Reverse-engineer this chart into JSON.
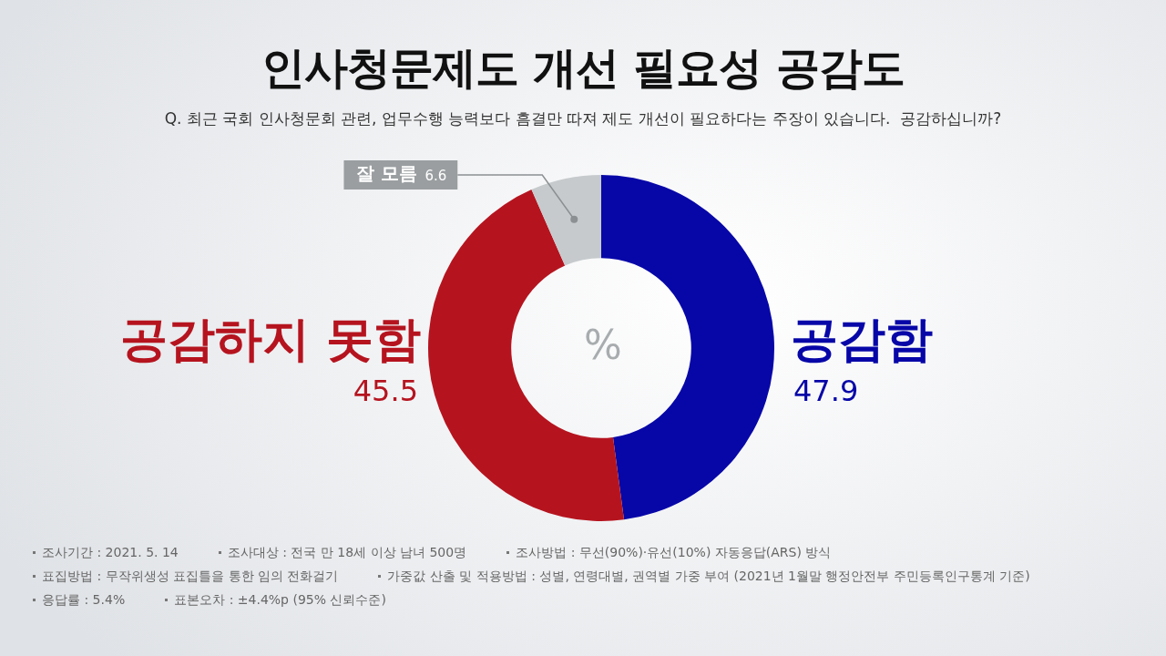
{
  "chart_data": {
    "type": "donut",
    "title": "인사청문제도 개선 필요성 공감도",
    "subtitle": "Q. 최근 국회 인사청문회 관련, 업무수행 능력보다 흠결만 따져 제도 개선이 필요하다는 주장이 있습니다.  공감하십니까?",
    "categories": [
      "공감함",
      "공감하지 못함",
      "잘 모름"
    ],
    "values": [
      47.9,
      45.5,
      6.6
    ],
    "colors": [
      "#0707a8",
      "#b5141f",
      "#c6cacc"
    ],
    "data_labels": true,
    "annotations": [
      "%",
      "조사기간 : 2021. 5. 14",
      "조사대상 : 전국 만 18세 이상 남녀 500명",
      "조사방법 : 무선(90%)·유선(10%) 자동응답(ARS) 방식",
      "표집방법 : 무작위생성 표집틀을 통한 임의 전화걸기",
      "가중값 산출 및 적용방법 : 성별, 연령대별, 권역별 가중 부여 (2021년 1월말 행정안전부 주민등록인구통계 기준)",
      "응답률 : 5.4%",
      "표본오차 : ±4.4%p (95% 신뢰수준)"
    ]
  }
}
